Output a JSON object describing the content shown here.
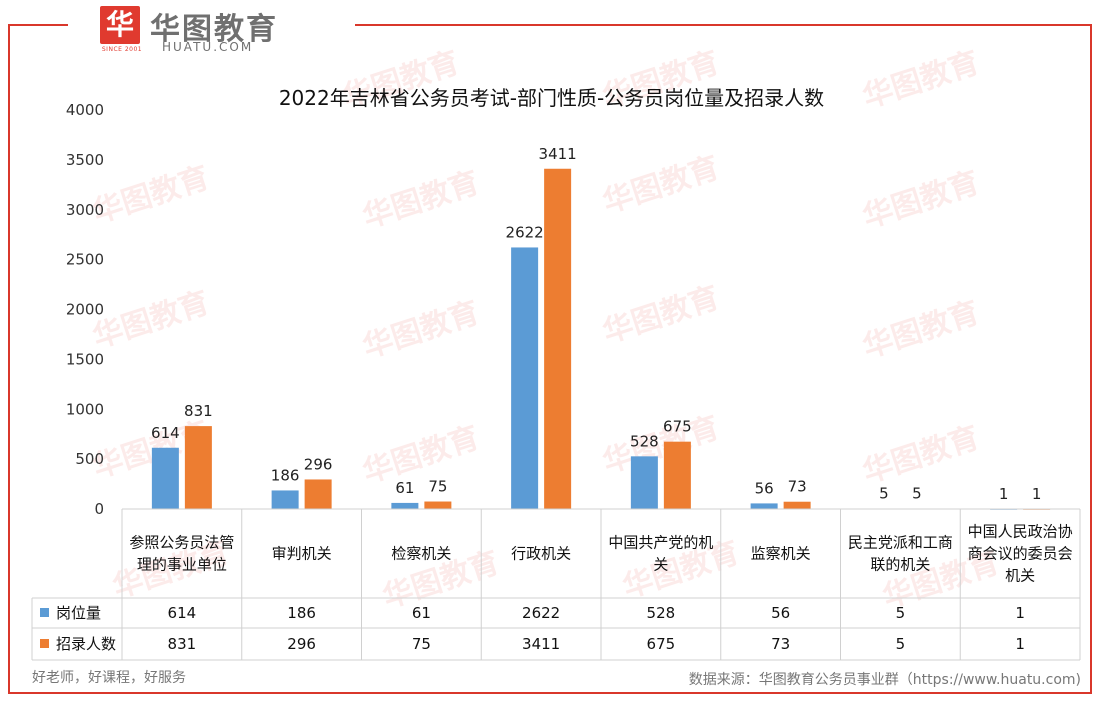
{
  "brand": {
    "mark": "华",
    "name": "华图教育",
    "domain": "HUATU.COM",
    "since": "SINCE 2001"
  },
  "footer": {
    "slogan": "好老师，好课程，好服务",
    "source": "数据来源：华图教育公务员事业群（https://www.huatu.com)"
  },
  "colors": {
    "series_1": "#5b9bd5",
    "series_2": "#ed7d31",
    "frame": "#d9372b"
  },
  "chart_data": {
    "type": "bar",
    "title": "2022年吉林省公务员考试-部门性质-公务员岗位量及招录人数",
    "categories": [
      [
        "参照公务员法管",
        "理的事业单位"
      ],
      [
        "审判机关"
      ],
      [
        "检察机关"
      ],
      [
        "行政机关"
      ],
      [
        "中国共产党的机",
        "关"
      ],
      [
        "监察机关"
      ],
      [
        "民主党派和工商",
        "联的机关"
      ],
      [
        "中国人民政治协",
        "商会议的委员会",
        "机关"
      ]
    ],
    "series": [
      {
        "name": "岗位量",
        "values": [
          614,
          186,
          61,
          2622,
          528,
          56,
          5,
          1
        ]
      },
      {
        "name": "招录人数",
        "values": [
          831,
          296,
          75,
          3411,
          675,
          73,
          5,
          1
        ]
      }
    ],
    "yticks": [
      0,
      500,
      1000,
      1500,
      2000,
      2500,
      3000,
      3500,
      4000
    ],
    "ylim": [
      0,
      4000
    ],
    "data_table": true,
    "legend": "data-table"
  }
}
